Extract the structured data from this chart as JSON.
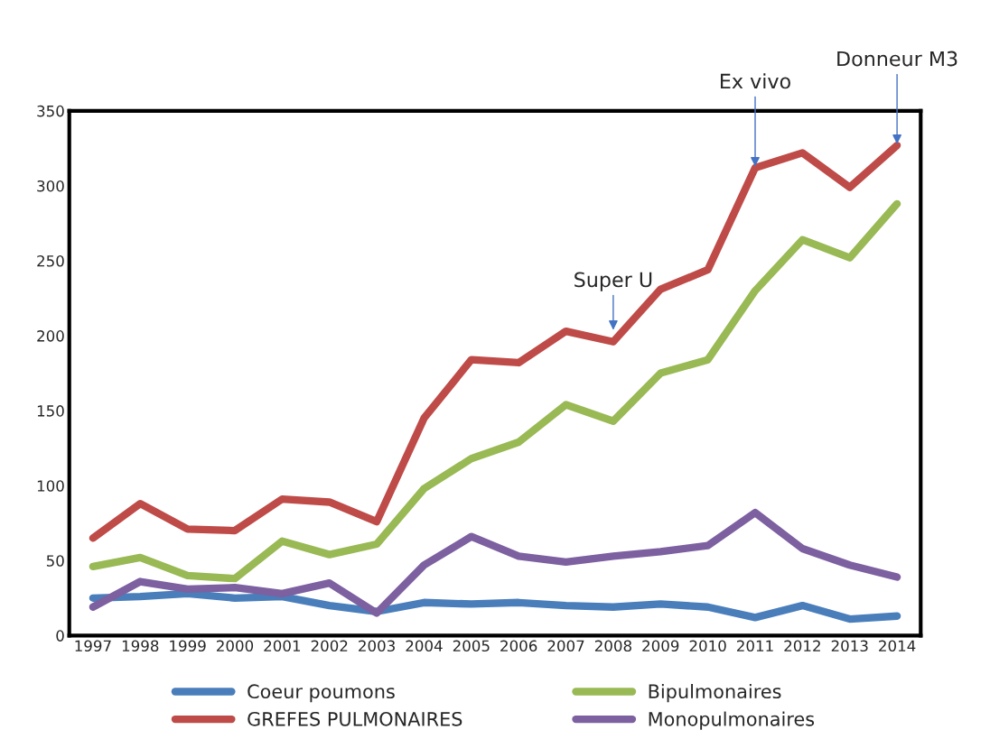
{
  "chart_data": {
    "type": "line",
    "categories": [
      "1997",
      "1998",
      "1999",
      "2000",
      "2001",
      "2002",
      "2003",
      "2004",
      "2005",
      "2006",
      "2007",
      "2008",
      "2009",
      "2010",
      "2011",
      "2012",
      "2013",
      "2014"
    ],
    "series": [
      {
        "name": "Coeur poumons",
        "color": "#4a7ebb",
        "values": [
          25,
          26,
          28,
          25,
          26,
          20,
          16,
          22,
          21,
          22,
          20,
          19,
          21,
          19,
          12,
          20,
          11,
          13
        ]
      },
      {
        "name": "GREFES PULMONAIRES",
        "color": "#be4b48",
        "values": [
          65,
          88,
          71,
          70,
          91,
          89,
          76,
          145,
          184,
          182,
          203,
          196,
          231,
          244,
          312,
          322,
          299,
          327
        ]
      },
      {
        "name": "Bipulmonaires",
        "color": "#98b954",
        "values": [
          46,
          52,
          40,
          38,
          63,
          54,
          61,
          98,
          118,
          129,
          154,
          143,
          175,
          184,
          230,
          264,
          252,
          288
        ]
      },
      {
        "name": "Monopulmonaires",
        "color": "#7d60a0",
        "values": [
          19,
          36,
          31,
          32,
          28,
          35,
          15,
          47,
          66,
          53,
          49,
          53,
          56,
          60,
          82,
          58,
          47,
          39
        ]
      }
    ],
    "ylim": [
      0,
      350
    ],
    "yticks": [
      0,
      50,
      100,
      150,
      200,
      250,
      300,
      350
    ],
    "annotations": [
      {
        "text": "Super U",
        "x": "2008",
        "y": 203
      },
      {
        "text": "Ex vivo",
        "x": "2011",
        "y": 312
      },
      {
        "text": "Donneur M3",
        "x": "2014",
        "y": 327
      }
    ],
    "grid": false,
    "legend": "bottom",
    "marker": "none",
    "line_style": "solid"
  }
}
